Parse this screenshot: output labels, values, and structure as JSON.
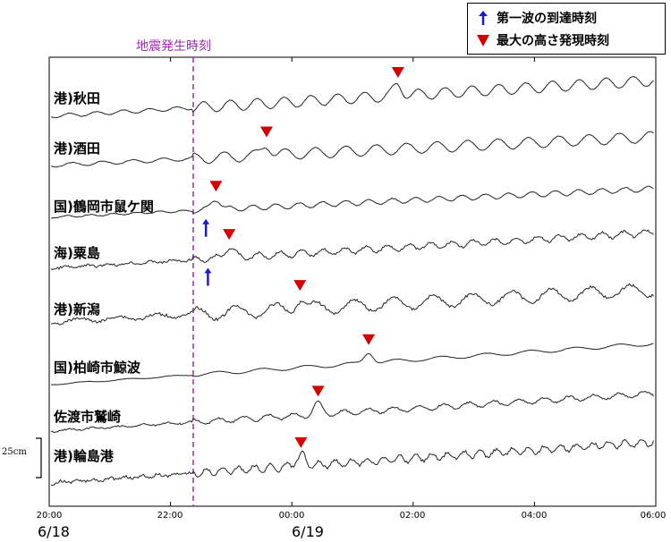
{
  "chart_data": {
    "type": "line",
    "x_ticks": [
      "20:00",
      "22:00",
      "00:00",
      "02:00",
      "04:00",
      "06:00"
    ],
    "dates": [
      "6/18",
      "6/19"
    ],
    "event_label": "地震発生時刻",
    "legend": {
      "first_wave": "第一波の到達時刻",
      "max_height": "最大の高さ発現時刻"
    },
    "scale_label": "25cm",
    "series": [
      {
        "name": "港)秋田",
        "first_arrival": null,
        "max_time": "01:45"
      },
      {
        "name": "港)酒田",
        "first_arrival": null,
        "max_time": "23:35"
      },
      {
        "name": "国)鶴岡市鼠ケ関",
        "first_arrival": "22:35",
        "max_time": "22:45"
      },
      {
        "name": "海)粟島",
        "first_arrival": "22:37",
        "max_time": "22:58"
      },
      {
        "name": "港)新潟",
        "first_arrival": null,
        "max_time": "00:08"
      },
      {
        "name": "国)柏崎市鯨波",
        "first_arrival": null,
        "max_time": "01:16"
      },
      {
        "name": "佐渡市鷲崎",
        "first_arrival": null,
        "max_time": "00:26"
      },
      {
        "name": "港)輪島港",
        "first_arrival": null,
        "max_time": "00:09"
      }
    ]
  },
  "colors": {
    "max_marker": "#d40000",
    "first_wave_arrow": "#1a1ad6",
    "event_line": "#9b2fae",
    "trace": "#222222"
  }
}
